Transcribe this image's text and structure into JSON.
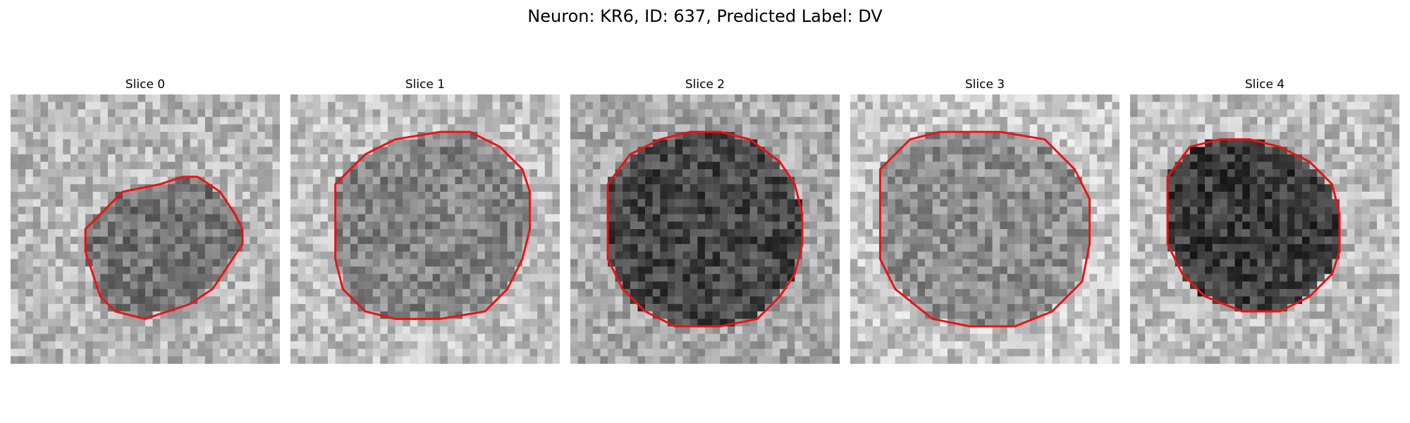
{
  "figure": {
    "title": "Neuron: KR6, ID: 637, Predicted Label: DV"
  },
  "panels": [
    {
      "title": "Slice 0",
      "base": 0.72,
      "cell": 0.46,
      "contour": [
        [
          10,
          18
        ],
        [
          12,
          16
        ],
        [
          15,
          13
        ],
        [
          20,
          12
        ],
        [
          23,
          11
        ],
        [
          25,
          11
        ],
        [
          28,
          13
        ],
        [
          30,
          16
        ],
        [
          31,
          18
        ],
        [
          31,
          20
        ],
        [
          29,
          23
        ],
        [
          27,
          26
        ],
        [
          24,
          28
        ],
        [
          21,
          29
        ],
        [
          18,
          30
        ],
        [
          14,
          29
        ],
        [
          12,
          27
        ],
        [
          11,
          24
        ],
        [
          10,
          21
        ]
      ]
    },
    {
      "title": "Slice 1",
      "base": 0.75,
      "cell": 0.52,
      "contour": [
        [
          6,
          12
        ],
        [
          10,
          8
        ],
        [
          14,
          6
        ],
        [
          20,
          5
        ],
        [
          24,
          5
        ],
        [
          28,
          7
        ],
        [
          31,
          10
        ],
        [
          32,
          13
        ],
        [
          32,
          18
        ],
        [
          31,
          22
        ],
        [
          29,
          26
        ],
        [
          26,
          29
        ],
        [
          20,
          30
        ],
        [
          14,
          30
        ],
        [
          10,
          29
        ],
        [
          7,
          26
        ],
        [
          6,
          22
        ],
        [
          6,
          16
        ]
      ]
    },
    {
      "title": "Slice 2",
      "base": 0.66,
      "cell": 0.28,
      "contour": [
        [
          5,
          12
        ],
        [
          8,
          8
        ],
        [
          12,
          6
        ],
        [
          16,
          5
        ],
        [
          20,
          5
        ],
        [
          24,
          6
        ],
        [
          28,
          9
        ],
        [
          30,
          12
        ],
        [
          31,
          16
        ],
        [
          31,
          20
        ],
        [
          30,
          24
        ],
        [
          28,
          27
        ],
        [
          25,
          30
        ],
        [
          20,
          31
        ],
        [
          14,
          31
        ],
        [
          10,
          29
        ],
        [
          7,
          26
        ],
        [
          5,
          22
        ],
        [
          5,
          16
        ]
      ]
    },
    {
      "title": "Slice 3",
      "base": 0.78,
      "cell": 0.56,
      "contour": [
        [
          4,
          10
        ],
        [
          8,
          6
        ],
        [
          12,
          5
        ],
        [
          20,
          5
        ],
        [
          26,
          6
        ],
        [
          30,
          10
        ],
        [
          32,
          14
        ],
        [
          32,
          20
        ],
        [
          31,
          25
        ],
        [
          27,
          29
        ],
        [
          22,
          31
        ],
        [
          16,
          31
        ],
        [
          11,
          30
        ],
        [
          6,
          26
        ],
        [
          4,
          22
        ],
        [
          4,
          16
        ]
      ]
    },
    {
      "title": "Slice 4",
      "base": 0.74,
      "cell": 0.24,
      "contour": [
        [
          5,
          11
        ],
        [
          8,
          7
        ],
        [
          12,
          6
        ],
        [
          16,
          6
        ],
        [
          20,
          7
        ],
        [
          24,
          9
        ],
        [
          27,
          12
        ],
        [
          28,
          16
        ],
        [
          28,
          21
        ],
        [
          27,
          24
        ],
        [
          24,
          27
        ],
        [
          20,
          29
        ],
        [
          15,
          29
        ],
        [
          10,
          27
        ],
        [
          7,
          24
        ],
        [
          5,
          20
        ],
        [
          5,
          15
        ]
      ]
    }
  ]
}
